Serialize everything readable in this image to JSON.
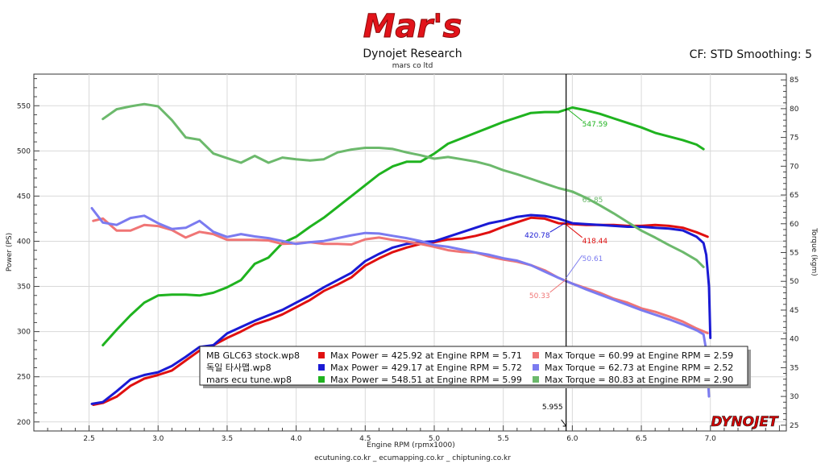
{
  "header": {
    "logo_text": "Mar's",
    "title": "Dynojet Research",
    "subtitle": "mars co ltd",
    "settings": "CF: STD Smoothing: 5"
  },
  "footer": {
    "text": "ecutuning.co.kr _ ecumapping.co.kr _ chiptuning.co.kr",
    "brand": "DYNOJET"
  },
  "chart_data": {
    "type": "line",
    "xlabel": "Engine RPM (rpmx1000)",
    "ylabel": "Power (PS)",
    "ylabel_right": "Torque (kgm)",
    "xlim": [
      2.1,
      7.55
    ],
    "ylim": [
      190,
      585
    ],
    "ylim_right": [
      24,
      86
    ],
    "x_ticks": [
      "2.5",
      "3.0",
      "3.5",
      "4.0",
      "4.5",
      "5.0",
      "5.5",
      "6.0",
      "6.5",
      "7.0"
    ],
    "y_ticks": [
      "200",
      "250",
      "300",
      "350",
      "400",
      "450",
      "500",
      "550"
    ],
    "y_ticks_right": [
      "25",
      "30",
      "35",
      "40",
      "45",
      "50",
      "55",
      "60",
      "65",
      "70",
      "75",
      "80",
      "85"
    ],
    "cursor": {
      "x": 5.955,
      "label": "5.955"
    },
    "cursor_values": [
      {
        "text": "547.59",
        "color": "#1fb31f"
      },
      {
        "text": "65.85",
        "color": "#6cb96c"
      },
      {
        "text": "420.78",
        "color": "#1a1ad4"
      },
      {
        "text": "418.44",
        "color": "#e01010"
      },
      {
        "text": "50.61",
        "color": "#7b7bf0"
      },
      {
        "text": "50.33",
        "color": "#f07575"
      }
    ],
    "legend": {
      "runs": [
        "MB GLC63 stock.wp8",
        "독일 타사맵.wp8",
        "mars ecu tune.wp8"
      ],
      "power_lines": [
        "Max Power = 425.92 at Engine RPM = 5.71",
        "Max Power = 429.17 at Engine RPM = 5.72",
        "Max Power = 548.51 at Engine RPM = 5.99"
      ],
      "torque_lines": [
        "Max Torque = 60.99 at Engine RPM = 2.59",
        "Max Torque = 62.73 at Engine RPM = 2.52",
        "Max Torque = 80.83 at Engine RPM = 2.90"
      ],
      "power_colors": [
        "#e01010",
        "#1a1ad4",
        "#1fb31f"
      ],
      "torque_colors": [
        "#f07575",
        "#7b7bf0",
        "#6cb96c"
      ]
    },
    "series": [
      {
        "name": "MB GLC63 stock.wp8",
        "kind": "power",
        "axis": "left",
        "color": "#e01010",
        "x": [
          2.53,
          2.6,
          2.7,
          2.8,
          2.9,
          3.0,
          3.1,
          3.2,
          3.3,
          3.4,
          3.5,
          3.6,
          3.7,
          3.8,
          3.9,
          4.0,
          4.1,
          4.2,
          4.3,
          4.4,
          4.5,
          4.6,
          4.7,
          4.8,
          4.9,
          5.0,
          5.1,
          5.2,
          5.3,
          5.4,
          5.5,
          5.6,
          5.7,
          5.8,
          5.9,
          6.0,
          6.1,
          6.2,
          6.3,
          6.4,
          6.5,
          6.6,
          6.7,
          6.8,
          6.9,
          6.98
        ],
        "y": [
          219,
          221,
          228,
          240,
          248,
          252,
          257,
          268,
          279,
          285,
          293,
          300,
          308,
          313,
          319,
          327,
          335,
          345,
          352,
          360,
          373,
          381,
          388,
          393,
          397,
          399,
          402,
          403,
          406,
          410,
          416,
          421,
          426,
          425,
          420,
          419,
          418,
          418,
          418,
          417,
          417,
          418,
          417,
          415,
          410,
          405
        ]
      },
      {
        "name": "독일 타사맵.wp8",
        "kind": "power",
        "axis": "left",
        "color": "#1a1ad4",
        "x": [
          2.52,
          2.6,
          2.7,
          2.8,
          2.9,
          3.0,
          3.1,
          3.2,
          3.3,
          3.4,
          3.5,
          3.6,
          3.7,
          3.8,
          3.9,
          4.0,
          4.1,
          4.2,
          4.3,
          4.4,
          4.5,
          4.6,
          4.7,
          4.8,
          4.9,
          5.0,
          5.1,
          5.2,
          5.3,
          5.4,
          5.5,
          5.6,
          5.7,
          5.8,
          5.9,
          6.0,
          6.1,
          6.2,
          6.3,
          6.4,
          6.5,
          6.6,
          6.7,
          6.8,
          6.9,
          6.95,
          6.97,
          6.99,
          7.0
        ],
        "y": [
          220,
          222,
          234,
          247,
          252,
          255,
          262,
          272,
          283,
          285,
          298,
          305,
          312,
          318,
          324,
          332,
          340,
          349,
          357,
          365,
          378,
          386,
          393,
          397,
          399,
          400,
          405,
          410,
          415,
          420,
          423,
          427,
          429,
          428,
          425,
          420,
          419,
          418,
          417,
          416,
          416,
          415,
          414,
          412,
          405,
          398,
          385,
          350,
          293
        ]
      },
      {
        "name": "mars ecu tune.wp8",
        "kind": "power",
        "axis": "left",
        "color": "#1fb31f",
        "x": [
          2.6,
          2.7,
          2.8,
          2.9,
          3.0,
          3.1,
          3.2,
          3.3,
          3.4,
          3.5,
          3.6,
          3.7,
          3.8,
          3.9,
          4.0,
          4.1,
          4.2,
          4.3,
          4.4,
          4.5,
          4.6,
          4.7,
          4.8,
          4.9,
          5.0,
          5.1,
          5.2,
          5.3,
          5.4,
          5.5,
          5.6,
          5.7,
          5.8,
          5.9,
          6.0,
          6.1,
          6.2,
          6.3,
          6.4,
          6.5,
          6.6,
          6.7,
          6.8,
          6.9,
          6.95
        ],
        "y": [
          285,
          302,
          318,
          332,
          340,
          341,
          341,
          340,
          343,
          349,
          357,
          375,
          382,
          398,
          405,
          416,
          426,
          438,
          450,
          462,
          474,
          483,
          488,
          488,
          497,
          508,
          514,
          520,
          526,
          532,
          537,
          542,
          543,
          543,
          548,
          545,
          541,
          536,
          531,
          526,
          520,
          516,
          512,
          507,
          502
        ]
      },
      {
        "name": "MB GLC63 stock.wp8",
        "kind": "torque",
        "axis": "right",
        "color": "#f07575",
        "x": [
          2.53,
          2.6,
          2.7,
          2.8,
          2.9,
          3.0,
          3.1,
          3.2,
          3.3,
          3.4,
          3.5,
          3.6,
          3.7,
          3.8,
          3.9,
          4.0,
          4.1,
          4.2,
          4.3,
          4.4,
          4.5,
          4.6,
          4.7,
          4.8,
          4.9,
          5.0,
          5.1,
          5.2,
          5.3,
          5.4,
          5.5,
          5.6,
          5.7,
          5.8,
          5.9,
          6.0,
          6.1,
          6.2,
          6.3,
          6.4,
          6.5,
          6.6,
          6.7,
          6.8,
          6.9,
          6.98
        ],
        "y": [
          60.5,
          60.9,
          58.8,
          58.8,
          59.8,
          59.6,
          58.9,
          57.6,
          58.6,
          58.2,
          57.2,
          57.2,
          57.2,
          57.1,
          56.5,
          56.6,
          56.8,
          56.5,
          56.5,
          56.4,
          57.3,
          57.6,
          57.2,
          56.9,
          56.5,
          56.0,
          55.4,
          55.1,
          55.0,
          54.3,
          53.8,
          53.4,
          52.8,
          51.9,
          50.6,
          49.6,
          48.8,
          48.0,
          47.0,
          46.3,
          45.3,
          44.7,
          43.9,
          43.0,
          41.8,
          41.0
        ]
      },
      {
        "name": "독일 타사맵.wp8",
        "kind": "torque",
        "axis": "right",
        "color": "#7b7bf0",
        "x": [
          2.52,
          2.6,
          2.7,
          2.8,
          2.9,
          3.0,
          3.1,
          3.2,
          3.3,
          3.4,
          3.5,
          3.6,
          3.7,
          3.8,
          3.9,
          4.0,
          4.1,
          4.2,
          4.3,
          4.4,
          4.5,
          4.6,
          4.7,
          4.8,
          4.9,
          5.0,
          5.1,
          5.2,
          5.3,
          5.4,
          5.5,
          5.6,
          5.7,
          5.8,
          5.9,
          6.0,
          6.1,
          6.2,
          6.3,
          6.4,
          6.5,
          6.6,
          6.7,
          6.8,
          6.9,
          6.95,
          6.97,
          6.99
        ],
        "y": [
          62.7,
          60.2,
          59.8,
          61.0,
          61.4,
          60.1,
          59.1,
          59.3,
          60.5,
          58.6,
          57.7,
          58.2,
          57.8,
          57.5,
          57.0,
          56.5,
          56.8,
          57.0,
          57.5,
          58.0,
          58.4,
          58.3,
          57.9,
          57.5,
          57.0,
          56.3,
          56.0,
          55.5,
          55.0,
          54.6,
          54.0,
          53.6,
          52.8,
          51.7,
          50.6,
          49.6,
          48.6,
          47.7,
          46.8,
          45.9,
          45.0,
          44.2,
          43.4,
          42.5,
          41.5,
          40.8,
          38.0,
          30.0
        ]
      },
      {
        "name": "mars ecu tune.wp8",
        "kind": "torque",
        "axis": "right",
        "color": "#6cb96c",
        "x": [
          2.6,
          2.7,
          2.8,
          2.9,
          3.0,
          3.1,
          3.2,
          3.3,
          3.4,
          3.5,
          3.6,
          3.7,
          3.8,
          3.9,
          4.0,
          4.1,
          4.2,
          4.3,
          4.4,
          4.5,
          4.6,
          4.7,
          4.8,
          4.9,
          5.0,
          5.1,
          5.2,
          5.3,
          5.4,
          5.5,
          5.6,
          5.7,
          5.8,
          5.9,
          6.0,
          6.1,
          6.2,
          6.3,
          6.4,
          6.5,
          6.6,
          6.7,
          6.8,
          6.9,
          6.95
        ],
        "y": [
          78.2,
          79.9,
          80.4,
          80.8,
          80.4,
          78.0,
          75.0,
          74.6,
          72.2,
          71.4,
          70.6,
          71.8,
          70.6,
          71.5,
          71.2,
          71.0,
          71.2,
          72.4,
          72.9,
          73.2,
          73.2,
          73.0,
          72.4,
          71.9,
          71.3,
          71.6,
          71.2,
          70.8,
          70.2,
          69.3,
          68.6,
          67.8,
          67.0,
          66.2,
          65.6,
          64.5,
          63.2,
          61.8,
          60.3,
          58.8,
          57.6,
          56.3,
          55.1,
          53.7,
          52.5
        ]
      }
    ]
  }
}
